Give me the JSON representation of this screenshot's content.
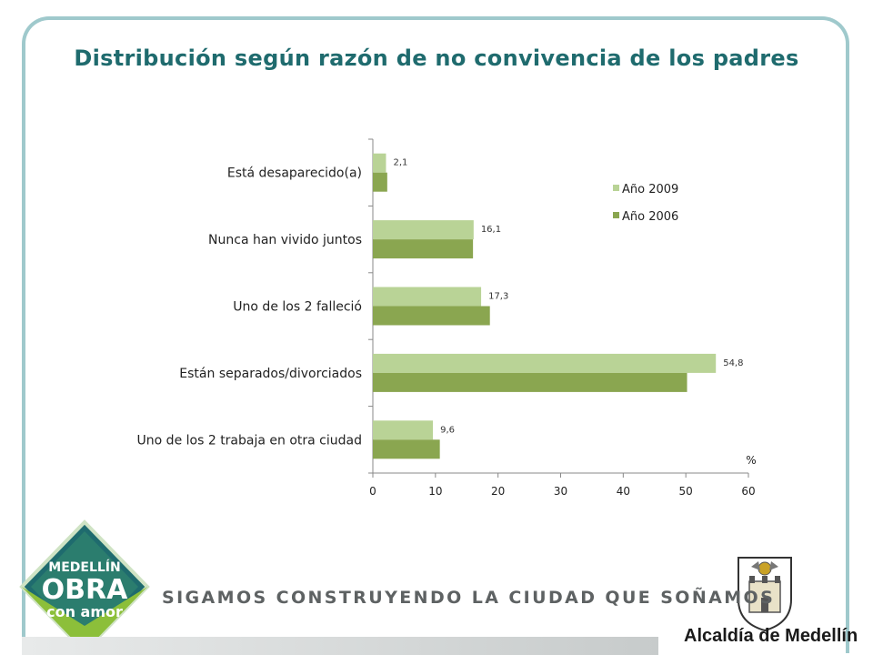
{
  "title": "Distribución según razón de no convivencia de los padres",
  "logo_left": {
    "line1": "MEDELLÍN",
    "line2": "OBRA",
    "line3": "con amor"
  },
  "slogan": "SIGAMOS CONSTRUYENDO LA CIUDAD QUE SOÑAMOS",
  "alcaldia": "Alcaldía de Medellín",
  "colors": {
    "title": "#1f6b6e",
    "series_2009": "#b9d396",
    "series_2006": "#8aa650",
    "frame": "#9fc9cc"
  },
  "chart_data": {
    "type": "bar",
    "orientation": "horizontal",
    "categories": [
      "Está desaparecido(a)",
      "Nunca han vivido juntos",
      "Uno de los 2 falleció",
      "Están separados/divorciados",
      "Uno de los 2 trabaja en otra ciudad"
    ],
    "series": [
      {
        "name": "Año 2009",
        "values": [
          2.1,
          16.1,
          17.3,
          54.8,
          9.6
        ],
        "labels": [
          "2,1",
          "16,1",
          "17,3",
          "54,8",
          "9,6"
        ]
      },
      {
        "name": "Año 2006",
        "values": [
          2.3,
          16.0,
          18.7,
          50.2,
          10.7
        ]
      }
    ],
    "xlim": [
      0,
      60
    ],
    "xticks": [
      "0",
      "10",
      "20",
      "30",
      "40",
      "50",
      "60"
    ],
    "unit_label": "%",
    "legend_position": "top-right",
    "grid": false
  }
}
